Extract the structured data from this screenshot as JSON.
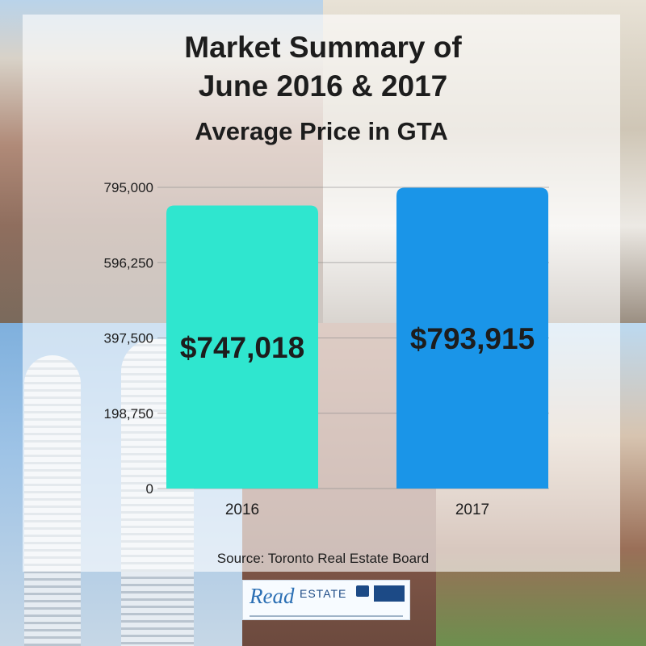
{
  "title_line1": "Market Summary of",
  "title_line2": "June 2016 & 2017",
  "title_line3": "Average Price in GTA",
  "source": "Source: Toronto Real Estate Board",
  "logo": {
    "brand": "Read",
    "word": "ESTATE"
  },
  "colors": {
    "bar_2016": "#2fe6cf",
    "bar_2017": "#1a95e8",
    "text": "#1d1d1d"
  },
  "chart_data": {
    "type": "bar",
    "title": "Market Summary of June 2016 & 2017 Average Price in GTA",
    "categories": [
      "2016",
      "2017"
    ],
    "values": [
      747018,
      793915
    ],
    "data_labels": [
      "$747,018",
      "$793,915"
    ],
    "yticks": [
      0,
      198750,
      397500,
      596250,
      795000
    ],
    "ytick_labels": [
      "0",
      "198,750",
      "397,500",
      "596,250",
      "795,000"
    ],
    "ylim": [
      0,
      795000
    ],
    "xlabel": "",
    "ylabel": "",
    "grid": true,
    "legend": false
  }
}
